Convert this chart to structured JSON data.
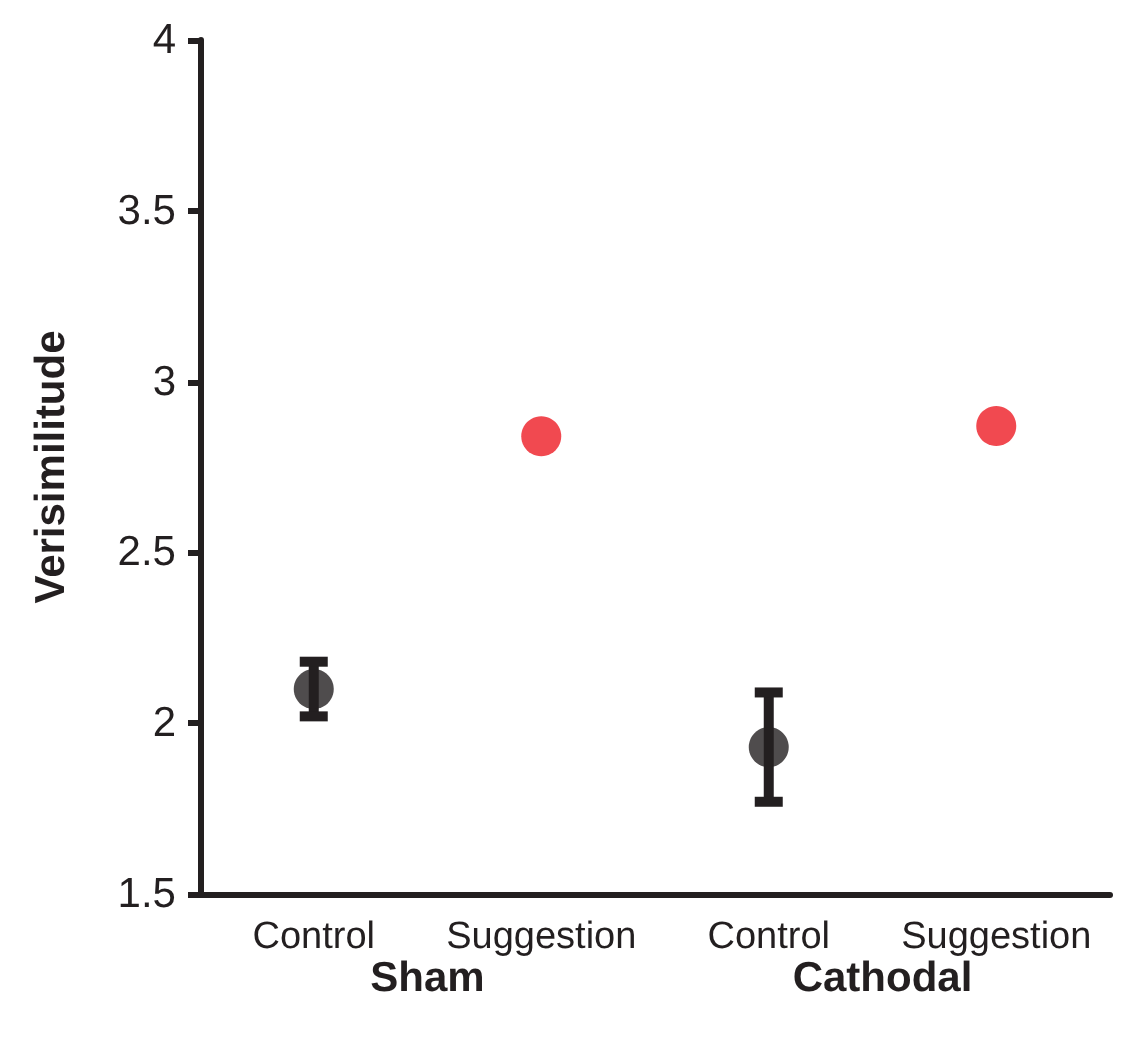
{
  "chart_data": {
    "type": "scatter",
    "ylabel": "Verisimilitude",
    "categories": [
      "Control",
      "Suggestion",
      "Control",
      "Suggestion"
    ],
    "values": [
      2.1,
      2.84,
      1.93,
      2.87
    ],
    "colors": [
      "#231f20",
      "#ed1c24",
      "#231f20",
      "#ed1c24"
    ],
    "errors": [
      0.08,
      null,
      0.16,
      null
    ],
    "ylim": [
      1.5,
      4
    ],
    "yticks": [
      1.5,
      2,
      2.5,
      3,
      3.5,
      4
    ],
    "annotations": [
      "Sham",
      "Cathodal"
    ],
    "grid": false,
    "marker": "circle"
  }
}
